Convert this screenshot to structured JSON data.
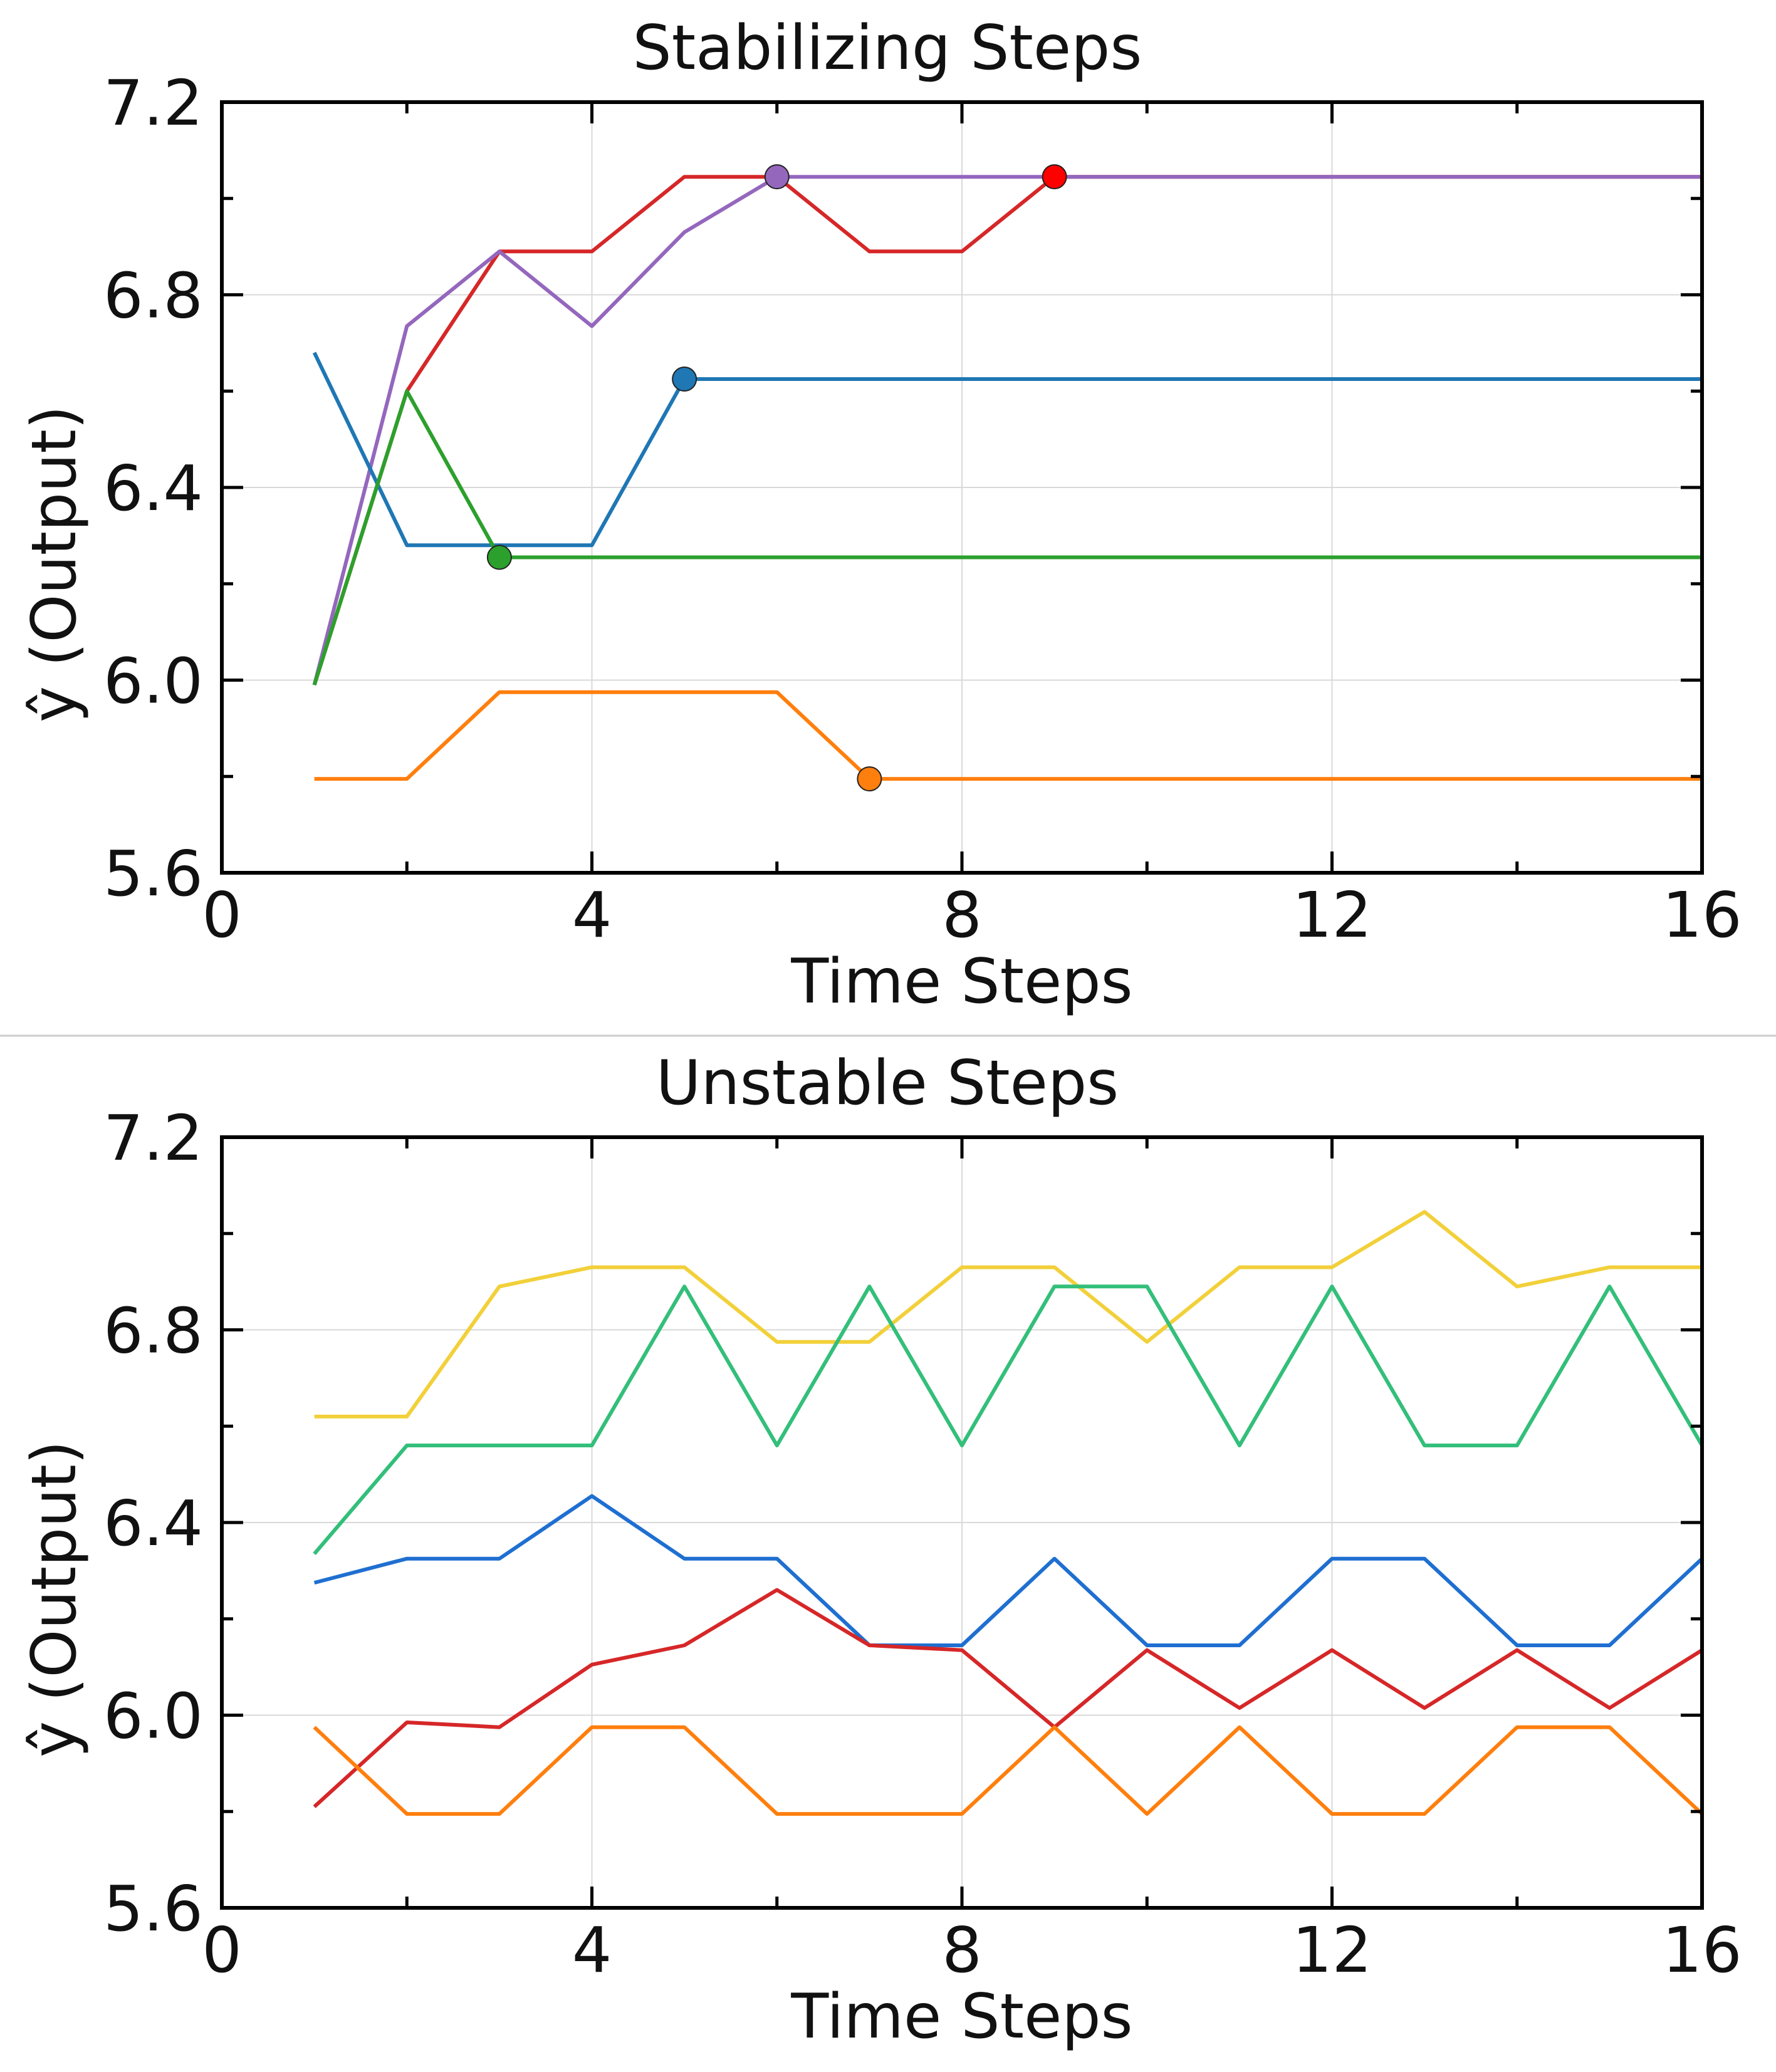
{
  "chart_data": [
    {
      "type": "line",
      "title": "Stabilizing Steps",
      "xlabel": "Time Steps",
      "ylabel": "ŷ (Output)",
      "xlim": [
        0,
        16
      ],
      "ylim": [
        5.6,
        7.2
      ],
      "xticks": [
        0,
        4,
        8,
        12,
        16
      ],
      "xtick_labels": [
        "0",
        "4",
        "8",
        "12",
        "16"
      ],
      "xminor": [
        2,
        6,
        10,
        14
      ],
      "yticks": [
        5.6,
        6.0,
        6.4,
        6.8,
        7.2
      ],
      "ytick_labels": [
        "5.6",
        "6.0",
        "6.4",
        "6.8",
        "7.2"
      ],
      "yminor": [
        5.8,
        6.2,
        6.6,
        7.0
      ],
      "grid": true,
      "series": [
        {
          "name": "series-red",
          "color": "#d62728",
          "x": [
            1,
            2,
            3,
            4,
            5,
            6,
            7,
            8,
            9,
            10,
            11,
            12,
            13,
            14,
            15,
            16
          ],
          "values": [
            5.99,
            6.6,
            6.89,
            6.89,
            7.045,
            7.045,
            6.89,
            6.89,
            7.045,
            7.045,
            7.045,
            7.045,
            7.045,
            7.045,
            7.045,
            7.045
          ],
          "marker": {
            "x": 9,
            "y": 7.045,
            "color": "#ff0000"
          }
        },
        {
          "name": "series-purple",
          "color": "#9467bd",
          "x": [
            1,
            2,
            3,
            4,
            5,
            6,
            7,
            8,
            9,
            10,
            11,
            12,
            13,
            14,
            15,
            16
          ],
          "values": [
            5.99,
            6.735,
            6.89,
            6.735,
            6.93,
            7.045,
            7.045,
            7.045,
            7.045,
            7.045,
            7.045,
            7.045,
            7.045,
            7.045,
            7.045,
            7.045
          ],
          "marker": {
            "x": 6,
            "y": 7.045,
            "color": "#9467bd"
          }
        },
        {
          "name": "series-blue",
          "color": "#1f77b4",
          "x": [
            1,
            2,
            3,
            4,
            5,
            6,
            7,
            8,
            9,
            10,
            11,
            12,
            13,
            14,
            15,
            16
          ],
          "values": [
            6.68,
            6.28,
            6.28,
            6.28,
            6.625,
            6.625,
            6.625,
            6.625,
            6.625,
            6.625,
            6.625,
            6.625,
            6.625,
            6.625,
            6.625,
            6.625
          ],
          "marker": {
            "x": 5,
            "y": 6.625,
            "color": "#1f77b4"
          }
        },
        {
          "name": "series-green",
          "color": "#2ca02c",
          "x": [
            1,
            2,
            3,
            4,
            5,
            6,
            7,
            8,
            9,
            10,
            11,
            12,
            13,
            14,
            15,
            16
          ],
          "values": [
            5.99,
            6.6,
            6.255,
            6.255,
            6.255,
            6.255,
            6.255,
            6.255,
            6.255,
            6.255,
            6.255,
            6.255,
            6.255,
            6.255,
            6.255,
            6.255
          ],
          "marker": {
            "x": 3,
            "y": 6.255,
            "color": "#2ca02c"
          }
        },
        {
          "name": "series-orange",
          "color": "#ff7f0e",
          "x": [
            1,
            2,
            3,
            4,
            5,
            6,
            7,
            8,
            9,
            10,
            11,
            12,
            13,
            14,
            15,
            16
          ],
          "values": [
            5.795,
            5.795,
            5.975,
            5.975,
            5.975,
            5.975,
            5.795,
            5.795,
            5.795,
            5.795,
            5.795,
            5.795,
            5.795,
            5.795,
            5.795,
            5.795
          ],
          "marker": {
            "x": 7,
            "y": 5.795,
            "color": "#ff7f0e"
          }
        }
      ]
    },
    {
      "type": "line",
      "title": "Unstable Steps",
      "xlabel": "Time Steps",
      "ylabel": "ŷ (Output)",
      "xlim": [
        0,
        16
      ],
      "ylim": [
        5.6,
        7.2
      ],
      "xticks": [
        0,
        4,
        8,
        12,
        16
      ],
      "xtick_labels": [
        "0",
        "4",
        "8",
        "12",
        "16"
      ],
      "xminor": [
        2,
        6,
        10,
        14
      ],
      "yticks": [
        5.6,
        6.0,
        6.4,
        6.8,
        7.2
      ],
      "ytick_labels": [
        "5.6",
        "6.0",
        "6.4",
        "6.8",
        "7.2"
      ],
      "yminor": [
        5.8,
        6.2,
        6.6,
        7.0
      ],
      "grid": true,
      "series": [
        {
          "name": "series-yellow",
          "color": "#f2d03a",
          "x": [
            1,
            2,
            3,
            4,
            5,
            6,
            7,
            8,
            9,
            10,
            11,
            12,
            13,
            14,
            15,
            16
          ],
          "values": [
            6.62,
            6.62,
            6.89,
            6.93,
            6.93,
            6.775,
            6.775,
            6.93,
            6.93,
            6.775,
            6.93,
            6.93,
            7.045,
            6.89,
            6.93,
            6.93
          ]
        },
        {
          "name": "series-teal",
          "color": "#33bf7a",
          "x": [
            1,
            2,
            3,
            4,
            5,
            6,
            7,
            8,
            9,
            10,
            11,
            12,
            13,
            14,
            15,
            16
          ],
          "values": [
            6.335,
            6.56,
            6.56,
            6.56,
            6.89,
            6.56,
            6.89,
            6.56,
            6.89,
            6.89,
            6.56,
            6.89,
            6.56,
            6.56,
            6.89,
            6.56
          ]
        },
        {
          "name": "series-blue",
          "color": "#1f6fd1",
          "x": [
            1,
            2,
            3,
            4,
            5,
            6,
            7,
            8,
            9,
            10,
            11,
            12,
            13,
            14,
            15,
            16
          ],
          "values": [
            6.275,
            6.325,
            6.325,
            6.455,
            6.325,
            6.325,
            6.145,
            6.145,
            6.325,
            6.145,
            6.145,
            6.325,
            6.325,
            6.145,
            6.145,
            6.325
          ]
        },
        {
          "name": "series-red",
          "color": "#d62728",
          "x": [
            1,
            2,
            3,
            4,
            5,
            6,
            7,
            8,
            9,
            10,
            11,
            12,
            13,
            14,
            15,
            16
          ],
          "values": [
            5.81,
            5.985,
            5.975,
            6.105,
            6.145,
            6.26,
            6.145,
            6.135,
            5.975,
            6.135,
            6.015,
            6.135,
            6.015,
            6.135,
            6.015,
            6.135
          ]
        },
        {
          "name": "series-orange",
          "color": "#ff7f0e",
          "x": [
            1,
            2,
            3,
            4,
            5,
            6,
            7,
            8,
            9,
            10,
            11,
            12,
            13,
            14,
            15,
            16
          ],
          "values": [
            5.975,
            5.795,
            5.795,
            5.975,
            5.975,
            5.795,
            5.795,
            5.795,
            5.975,
            5.795,
            5.975,
            5.795,
            5.795,
            5.975,
            5.975,
            5.795
          ]
        }
      ]
    }
  ]
}
